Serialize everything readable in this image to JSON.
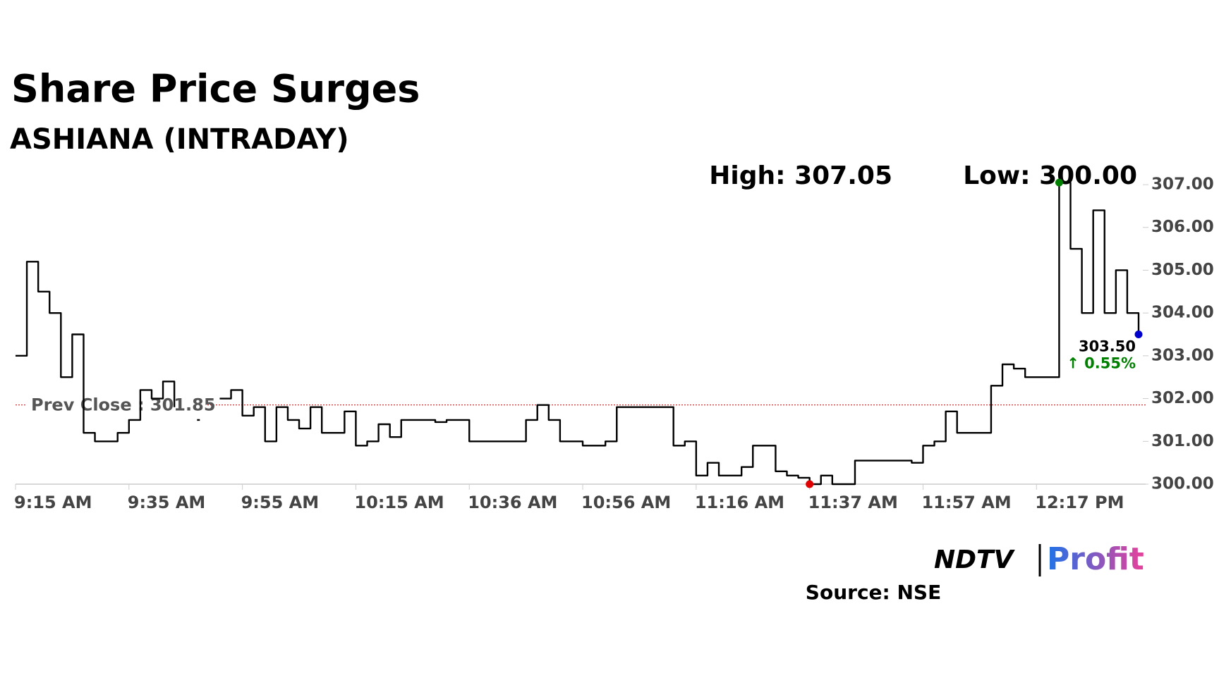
{
  "chart_data": {
    "type": "line",
    "title": "Share Price Surges",
    "subtitle": "ASHIANA (INTRADAY)",
    "high_label": "High: 307.05",
    "low_label": "Low: 300.00",
    "prev_close": 301.85,
    "prev_close_label": "Prev Close : 301.85",
    "last_label": "303.50",
    "change_label": "↑ 0.55%",
    "high_index": 92,
    "low_index": 70,
    "last_index": 99,
    "categories": [
      "9:15 AM",
      null,
      null,
      null,
      null,
      null,
      null,
      null,
      null,
      null,
      "9:35 AM",
      null,
      null,
      null,
      null,
      null,
      null,
      null,
      null,
      null,
      "9:55 AM",
      null,
      null,
      null,
      null,
      null,
      null,
      null,
      null,
      null,
      "10:15 AM",
      null,
      null,
      null,
      null,
      null,
      null,
      null,
      null,
      null,
      "10:36 AM",
      null,
      null,
      null,
      null,
      null,
      null,
      null,
      null,
      null,
      "10:56 AM",
      null,
      null,
      null,
      null,
      null,
      null,
      null,
      null,
      null,
      "11:16 AM",
      null,
      null,
      null,
      null,
      null,
      null,
      null,
      null,
      null,
      "11:37 AM",
      null,
      null,
      null,
      null,
      null,
      null,
      null,
      null,
      null,
      "11:57 AM",
      null,
      null,
      null,
      null,
      null,
      null,
      null,
      null,
      null,
      "12:17 PM",
      null,
      null,
      null,
      null,
      null,
      null,
      null,
      null,
      null
    ],
    "series": [
      {
        "name": "ASHIANA",
        "color": "#000000",
        "values": [
          303.0,
          305.2,
          304.5,
          304.0,
          302.5,
          303.5,
          301.2,
          301.0,
          301.0,
          301.2,
          301.5,
          302.2,
          302.0,
          302.4,
          301.8,
          null,
          301.5,
          null,
          302.0,
          302.2,
          301.6,
          301.8,
          301.0,
          301.8,
          301.5,
          301.3,
          301.8,
          301.2,
          301.2,
          301.7,
          300.9,
          301.0,
          301.4,
          301.1,
          301.5,
          301.5,
          301.5,
          301.45,
          301.5,
          301.5,
          301.0,
          301.0,
          301.0,
          301.0,
          301.0,
          301.5,
          301.85,
          301.5,
          301.0,
          301.0,
          300.9,
          300.9,
          301.0,
          301.8,
          301.8,
          301.8,
          301.8,
          301.8,
          300.9,
          301.0,
          300.2,
          300.5,
          300.2,
          300.2,
          300.4,
          300.9,
          300.9,
          300.3,
          300.2,
          300.15,
          300.0,
          300.2,
          300.0,
          300.0,
          300.55,
          300.55,
          300.55,
          300.55,
          300.55,
          300.5,
          300.9,
          301.0,
          301.7,
          301.2,
          301.2,
          301.2,
          302.3,
          302.8,
          302.7,
          302.5,
          302.5,
          302.5,
          307.05,
          305.5,
          304.0,
          306.4,
          304.0,
          305.0,
          304.0,
          303.5
        ]
      }
    ],
    "ylim": [
      300,
      307
    ],
    "yticks": [
      {
        "value": 300,
        "label": "300.00"
      },
      {
        "value": 301,
        "label": "301.00"
      },
      {
        "value": 302,
        "label": "302.00"
      },
      {
        "value": 303,
        "label": "303.00"
      },
      {
        "value": 304,
        "label": "304.00"
      },
      {
        "value": 305,
        "label": "305.00"
      },
      {
        "value": 306,
        "label": "306.00"
      },
      {
        "value": 307,
        "label": "307.00"
      }
    ],
    "high_color": "#008000",
    "low_color": "#e00000",
    "last_color": "#0000cc",
    "prev_close_color": "#cc0000",
    "brand": "NDTV",
    "brand_sub": "Profit",
    "source": "Source: NSE"
  }
}
